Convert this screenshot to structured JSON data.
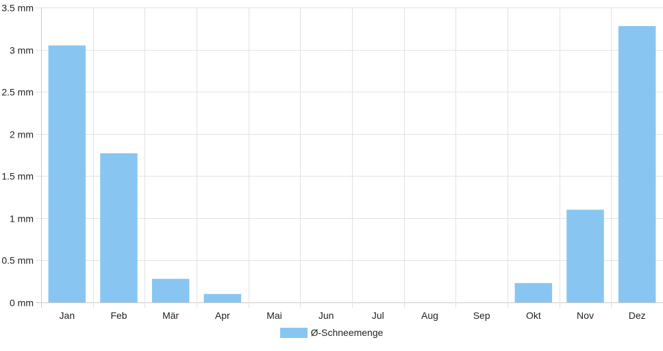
{
  "chart_data": {
    "type": "bar",
    "categories": [
      "Jan",
      "Feb",
      "Mär",
      "Apr",
      "Mai",
      "Jun",
      "Jul",
      "Aug",
      "Sep",
      "Okt",
      "Nov",
      "Dez"
    ],
    "series": [
      {
        "name": "Ø-Schneemenge",
        "values": [
          3.05,
          1.77,
          0.28,
          0.1,
          0,
          0,
          0,
          0,
          0,
          0.23,
          1.1,
          3.28
        ]
      }
    ],
    "ylim": [
      0,
      3.5
    ],
    "yticks": [
      0,
      0.5,
      1,
      1.5,
      2,
      2.5,
      3,
      3.5
    ],
    "ytick_labels": [
      "0 mm",
      "0.5 mm",
      "1 mm",
      "1.5 mm",
      "2 mm",
      "2.5 mm",
      "3 mm",
      "3.5 mm"
    ],
    "grid": true,
    "legend_position": "bottom",
    "colors": {
      "bar": "#88c6f1",
      "grid": "#e2e2e2",
      "axis": "#c8c8c8",
      "text": "#222222"
    }
  }
}
